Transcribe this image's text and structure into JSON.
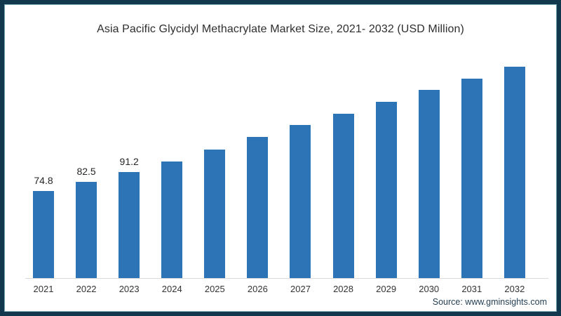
{
  "page": {
    "source": "Source: www.gminsights.com"
  },
  "chart_data": {
    "type": "bar",
    "title": "Asia Pacific Glycidyl Methacrylate Market Size, 2021- 2032 (USD Million)",
    "categories": [
      "2021",
      "2022",
      "2023",
      "2024",
      "2025",
      "2026",
      "2027",
      "2028",
      "2029",
      "2030",
      "2031",
      "2032"
    ],
    "values": [
      74.8,
      82.5,
      91.2,
      100.0,
      110.6,
      121.1,
      131.7,
      141.2,
      151.5,
      161.5,
      171.5,
      181.8
    ],
    "value_labels_shown": [
      "74.8",
      "82.5",
      "91.2"
    ],
    "xlabel": "",
    "ylabel": "USD Million",
    "ylim": [
      0,
      200
    ],
    "grid": false,
    "legend": "none",
    "bar_color": "#2d74b6",
    "axis_line_color": "#d9d9d9",
    "frame_border_color": "#11384d"
  }
}
